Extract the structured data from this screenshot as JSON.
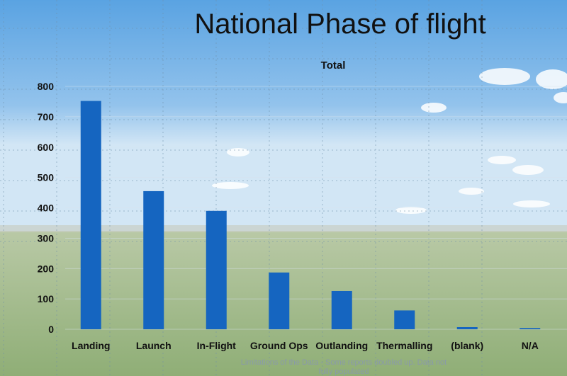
{
  "page": {
    "title": "National Phase of flight",
    "footnote": "Limitations of the Data - Some reports doubled up. Data not fully populated"
  },
  "colors": {
    "bar": "#1565c0",
    "sky_top": "#4f9de0",
    "sky_bottom": "#c9e2f4",
    "grass": "#9ab77e",
    "text": "#111111"
  },
  "chart_data": {
    "type": "bar",
    "title": "Total",
    "xlabel": "",
    "ylabel": "",
    "categories": [
      "Landing",
      "Launch",
      "In-Flight",
      "Ground Ops",
      "Outlanding",
      "Thermalling",
      "(blank)",
      "N/A"
    ],
    "values": [
      752,
      455,
      390,
      187,
      126,
      62,
      7,
      4
    ],
    "ylim": [
      0,
      800
    ],
    "yticks": [
      0,
      100,
      200,
      300,
      400,
      500,
      600,
      700,
      800
    ],
    "grid": true,
    "legend": "none"
  }
}
